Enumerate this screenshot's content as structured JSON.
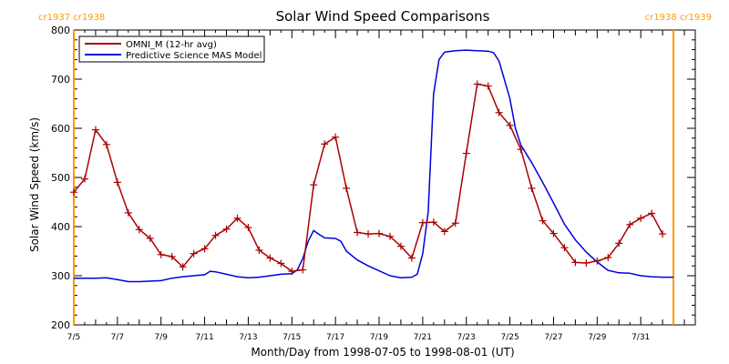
{
  "chart_data": {
    "type": "line",
    "title": "Solar Wind Speed Comparisons",
    "xlabel": "Month/Day from 1998-07-05 to 1998-08-01 (UT)",
    "ylabel": "Solar Wind Speed (km/s)",
    "xlim": [
      "1998-07-05T00:00",
      "1998-08-02T12:00"
    ],
    "ylim": [
      200,
      800
    ],
    "yticks": [
      200,
      300,
      400,
      500,
      600,
      700,
      800
    ],
    "yticks_minor_step": 20,
    "xticks": [
      {
        "date": "1998-07-05",
        "label": "7/5"
      },
      {
        "date": "1998-07-07",
        "label": "7/7"
      },
      {
        "date": "1998-07-09",
        "label": "7/9"
      },
      {
        "date": "1998-07-11",
        "label": "7/11"
      },
      {
        "date": "1998-07-13",
        "label": "7/13"
      },
      {
        "date": "1998-07-15",
        "label": "7/15"
      },
      {
        "date": "1998-07-17",
        "label": "7/17"
      },
      {
        "date": "1998-07-19",
        "label": "7/19"
      },
      {
        "date": "1998-07-21",
        "label": "7/21"
      },
      {
        "date": "1998-07-23",
        "label": "7/23"
      },
      {
        "date": "1998-07-25",
        "label": "7/25"
      },
      {
        "date": "1998-07-27",
        "label": "7/27"
      },
      {
        "date": "1998-07-29",
        "label": "7/29"
      },
      {
        "date": "1998-07-31",
        "label": "7/31"
      }
    ],
    "grid": false,
    "legend_position": "top-left",
    "carrington_markers": [
      {
        "date": "1998-07-05T00:00",
        "label": "cr1937 cr1938",
        "color": "#ff9900",
        "anchor": "left"
      },
      {
        "date": "1998-08-01T12:00",
        "label": "cr1938 cr1939",
        "color": "#ff9900",
        "anchor": "right"
      }
    ],
    "series": [
      {
        "name": "OMNI_M (12-hr avg)",
        "color": "#aa0000",
        "marker": "plus",
        "points": [
          [
            "1998-07-05T00:00",
            470
          ],
          [
            "1998-07-05T12:00",
            497
          ],
          [
            "1998-07-06T00:00",
            597
          ],
          [
            "1998-07-06T12:00",
            567
          ],
          [
            "1998-07-07T00:00",
            490
          ],
          [
            "1998-07-07T12:00",
            428
          ],
          [
            "1998-07-08T00:00",
            394
          ],
          [
            "1998-07-08T12:00",
            376
          ],
          [
            "1998-07-09T00:00",
            343
          ],
          [
            "1998-07-09T12:00",
            339
          ],
          [
            "1998-07-10T00:00",
            318
          ],
          [
            "1998-07-10T12:00",
            345
          ],
          [
            "1998-07-11T00:00",
            355
          ],
          [
            "1998-07-11T12:00",
            382
          ],
          [
            "1998-07-12T00:00",
            395
          ],
          [
            "1998-07-12T12:00",
            417
          ],
          [
            "1998-07-13T00:00",
            398
          ],
          [
            "1998-07-13T12:00",
            352
          ],
          [
            "1998-07-14T00:00",
            336
          ],
          [
            "1998-07-14T12:00",
            325
          ],
          [
            "1998-07-15T00:00",
            309
          ],
          [
            "1998-07-15T12:00",
            312
          ],
          [
            "1998-07-16T00:00",
            485
          ],
          [
            "1998-07-16T12:00",
            568
          ],
          [
            "1998-07-17T00:00",
            582
          ],
          [
            "1998-07-17T12:00",
            478
          ],
          [
            "1998-07-18T00:00",
            388
          ],
          [
            "1998-07-18T12:00",
            385
          ],
          [
            "1998-07-19T00:00",
            386
          ],
          [
            "1998-07-19T12:00",
            380
          ],
          [
            "1998-07-20T00:00",
            360
          ],
          [
            "1998-07-20T12:00",
            336
          ],
          [
            "1998-07-21T00:00",
            408
          ],
          [
            "1998-07-21T12:00",
            409
          ],
          [
            "1998-07-22T00:00",
            390
          ],
          [
            "1998-07-22T12:00",
            407
          ],
          [
            "1998-07-23T00:00",
            549
          ],
          [
            "1998-07-23T12:00",
            690
          ],
          [
            "1998-07-24T00:00",
            686
          ],
          [
            "1998-07-24T12:00",
            632
          ],
          [
            "1998-07-25T00:00",
            606
          ],
          [
            "1998-07-25T12:00",
            557
          ],
          [
            "1998-07-26T00:00",
            478
          ],
          [
            "1998-07-26T12:00",
            412
          ],
          [
            "1998-07-27T00:00",
            386
          ],
          [
            "1998-07-27T12:00",
            357
          ],
          [
            "1998-07-28T00:00",
            327
          ],
          [
            "1998-07-28T12:00",
            326
          ],
          [
            "1998-07-29T00:00",
            330
          ],
          [
            "1998-07-29T12:00",
            337
          ],
          [
            "1998-07-30T00:00",
            366
          ],
          [
            "1998-07-30T12:00",
            404
          ],
          [
            "1998-07-31T00:00",
            417
          ],
          [
            "1998-07-31T12:00",
            427
          ],
          [
            "1998-08-01T00:00",
            385
          ]
        ]
      },
      {
        "name": "Predictive Science MAS Model",
        "color": "#0000dd",
        "marker": "none",
        "points": [
          [
            "1998-07-05T00:00",
            295
          ],
          [
            "1998-07-06T00:00",
            295
          ],
          [
            "1998-07-06T12:00",
            296
          ],
          [
            "1998-07-07T00:00",
            292
          ],
          [
            "1998-07-07T12:00",
            288
          ],
          [
            "1998-07-08T00:00",
            288
          ],
          [
            "1998-07-09T00:00",
            290
          ],
          [
            "1998-07-09T12:00",
            295
          ],
          [
            "1998-07-10T00:00",
            298
          ],
          [
            "1998-07-11T00:00",
            302
          ],
          [
            "1998-07-11T06:00",
            309
          ],
          [
            "1998-07-11T12:00",
            308
          ],
          [
            "1998-07-12T00:00",
            303
          ],
          [
            "1998-07-12T12:00",
            298
          ],
          [
            "1998-07-13T00:00",
            296
          ],
          [
            "1998-07-13T12:00",
            297
          ],
          [
            "1998-07-14T00:00",
            300
          ],
          [
            "1998-07-14T12:00",
            303
          ],
          [
            "1998-07-15T00:00",
            304
          ],
          [
            "1998-07-15T06:00",
            312
          ],
          [
            "1998-07-15T12:00",
            335
          ],
          [
            "1998-07-15T18:00",
            370
          ],
          [
            "1998-07-16T00:00",
            392
          ],
          [
            "1998-07-16T06:00",
            384
          ],
          [
            "1998-07-16T12:00",
            377
          ],
          [
            "1998-07-17T00:00",
            376
          ],
          [
            "1998-07-17T06:00",
            370
          ],
          [
            "1998-07-17T12:00",
            350
          ],
          [
            "1998-07-18T00:00",
            332
          ],
          [
            "1998-07-18T12:00",
            320
          ],
          [
            "1998-07-19T00:00",
            310
          ],
          [
            "1998-07-19T12:00",
            300
          ],
          [
            "1998-07-20T00:00",
            296
          ],
          [
            "1998-07-20T12:00",
            297
          ],
          [
            "1998-07-20T18:00",
            303
          ],
          [
            "1998-07-21T00:00",
            345
          ],
          [
            "1998-07-21T06:00",
            430
          ],
          [
            "1998-07-21T12:00",
            670
          ],
          [
            "1998-07-21T18:00",
            740
          ],
          [
            "1998-07-22T00:00",
            755
          ],
          [
            "1998-07-22T12:00",
            758
          ],
          [
            "1998-07-23T00:00",
            759
          ],
          [
            "1998-07-23T12:00",
            758
          ],
          [
            "1998-07-24T00:00",
            757
          ],
          [
            "1998-07-24T06:00",
            754
          ],
          [
            "1998-07-24T12:00",
            737
          ],
          [
            "1998-07-25T00:00",
            660
          ],
          [
            "1998-07-25T06:00",
            600
          ],
          [
            "1998-07-25T12:00",
            566
          ],
          [
            "1998-07-26T00:00",
            530
          ],
          [
            "1998-07-26T12:00",
            490
          ],
          [
            "1998-07-27T00:00",
            448
          ],
          [
            "1998-07-27T12:00",
            405
          ],
          [
            "1998-07-28T00:00",
            373
          ],
          [
            "1998-07-28T12:00",
            348
          ],
          [
            "1998-07-29T00:00",
            328
          ],
          [
            "1998-07-29T12:00",
            311
          ],
          [
            "1998-07-30T00:00",
            306
          ],
          [
            "1998-07-30T12:00",
            305
          ],
          [
            "1998-07-31T00:00",
            300
          ],
          [
            "1998-07-31T12:00",
            298
          ],
          [
            "1998-08-01T00:00",
            297
          ],
          [
            "1998-08-01T12:00",
            297
          ]
        ]
      }
    ]
  }
}
